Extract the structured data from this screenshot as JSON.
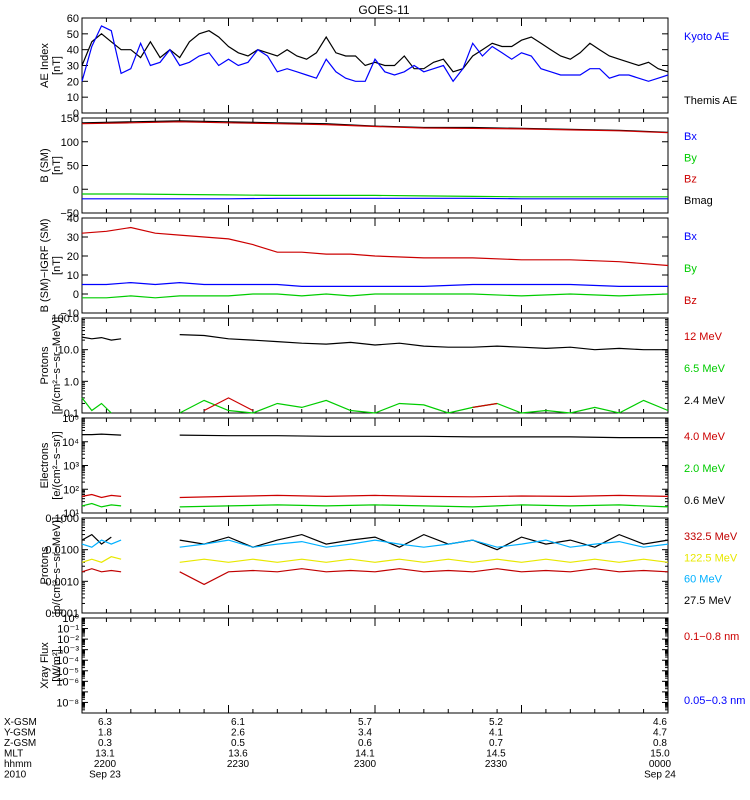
{
  "title": "GOES-11",
  "colors": {
    "black": "#000000",
    "blue": "#0000ff",
    "red": "#cc0000",
    "green": "#00cc00",
    "cyan": "#00b0ff",
    "yellow": "#e8e800",
    "darkred": "#c00000"
  },
  "panels": [
    {
      "id": "ae",
      "ylabel": "AE Index",
      "yunit": "[nT]",
      "scale": "linear",
      "ylim": [
        0,
        60
      ],
      "yticks": [
        0,
        10,
        20,
        30,
        40,
        50,
        60
      ],
      "yticklabels": [
        "0",
        "10",
        "20",
        "30",
        "40",
        "50",
        "60"
      ],
      "legend": [
        {
          "label": "Kyoto AE",
          "color": "#0000ff"
        },
        {
          "label": "Themis AE",
          "color": "#000000"
        }
      ]
    },
    {
      "id": "bfield",
      "ylabel": "B (SM)",
      "yunit": "[nT]",
      "scale": "linear",
      "ylim": [
        -50,
        150
      ],
      "yticks": [
        -50,
        0,
        50,
        100,
        150
      ],
      "yticklabels": [
        "−50",
        "0",
        "50",
        "100",
        "150"
      ],
      "legend": [
        {
          "label": "Bx",
          "color": "#0000ff"
        },
        {
          "label": "By",
          "color": "#00cc00"
        },
        {
          "label": "Bz",
          "color": "#cc0000"
        },
        {
          "label": "Bmag",
          "color": "#000000"
        }
      ]
    },
    {
      "id": "bdiff",
      "ylabel": "B (SM)−IGRF (SM)",
      "yunit": "[nT]",
      "scale": "linear",
      "ylim": [
        -10,
        40
      ],
      "yticks": [
        -10,
        0,
        10,
        20,
        30,
        40
      ],
      "yticklabels": [
        "−10",
        "0",
        "10",
        "20",
        "30",
        "40"
      ],
      "legend": [
        {
          "label": "Bx",
          "color": "#0000ff"
        },
        {
          "label": "By",
          "color": "#00cc00"
        },
        {
          "label": "Bz",
          "color": "#cc0000"
        }
      ]
    },
    {
      "id": "protons_low",
      "ylabel": "Protons",
      "yunit": "[p/(cm²−s−sr−MeV)]",
      "scale": "log",
      "ylim": [
        0.1,
        100
      ],
      "yticks": [
        0.1,
        1,
        10,
        100
      ],
      "yticklabels": [
        "0.1",
        "1.0",
        "10.0",
        "100.0"
      ],
      "legend": [
        {
          "label": "12 MeV",
          "color": "#cc0000"
        },
        {
          "label": "6.5 MeV",
          "color": "#00cc00"
        },
        {
          "label": "2.4 MeV",
          "color": "#000000"
        }
      ]
    },
    {
      "id": "electrons",
      "ylabel": "Electrons",
      "yunit": "[e/(cm²−s−sr)]",
      "scale": "log",
      "ylim": [
        10,
        100000
      ],
      "yticks": [
        10,
        100,
        1000,
        10000,
        100000
      ],
      "yticklabels": [
        "10¹",
        "10²",
        "10³",
        "10⁴",
        "10⁵"
      ],
      "legend": [
        {
          "label": "4.0 MeV",
          "color": "#cc0000"
        },
        {
          "label": "2.0 MeV",
          "color": "#00cc00"
        },
        {
          "label": "0.6 MeV",
          "color": "#000000"
        }
      ]
    },
    {
      "id": "protons_high",
      "ylabel": "Protons",
      "yunit": "[p/(cm²−s−sr−MeV)]",
      "scale": "log",
      "ylim": [
        0.0001,
        0.1
      ],
      "yticks": [
        0.0001,
        0.001,
        0.01,
        0.1
      ],
      "yticklabels": [
        "0.0001",
        "0.0010",
        "0.0100",
        "0.1000"
      ],
      "legend": [
        {
          "label": "332.5 MeV",
          "color": "#c00000"
        },
        {
          "label": "122.5 MeV",
          "color": "#e8e800"
        },
        {
          "label": "60 MeV",
          "color": "#00b0ff"
        },
        {
          "label": "27.5 MeV",
          "color": "#000000"
        }
      ]
    },
    {
      "id": "xray",
      "ylabel": "Xray Flux",
      "yunit": "[W/m²]",
      "scale": "log",
      "ylim": [
        1e-09,
        1
      ],
      "yticks": [
        1e-09,
        1e-08,
        1e-07,
        1e-06,
        1e-05,
        0.0001,
        0.001,
        0.01,
        0.1,
        1
      ],
      "yticklabels": [
        "",
        "10⁻⁸",
        "",
        "10⁻⁶",
        "10⁻⁵",
        "10⁻⁴",
        "10⁻³",
        "10⁻²",
        "10⁻¹",
        "10⁰"
      ],
      "legend": [
        {
          "label": "0.1−0.8 nm",
          "color": "#cc0000"
        },
        {
          "label": "0.05−0.3 nm",
          "color": "#0000ff"
        }
      ]
    }
  ],
  "xaxis": {
    "row_labels": [
      "X-GSM",
      "Y-GSM",
      "Z-GSM",
      "MLT",
      "hhmm",
      "2010"
    ],
    "columns": [
      {
        "values": [
          "6.3",
          "1.8",
          "0.3",
          "13.1",
          "2200",
          "Sep 23"
        ]
      },
      {
        "values": [
          "6.1",
          "2.6",
          "0.5",
          "13.6",
          "2230",
          ""
        ]
      },
      {
        "values": [
          "5.7",
          "3.4",
          "0.6",
          "14.1",
          "2300",
          ""
        ]
      },
      {
        "values": [
          "5.2",
          "4.1",
          "0.7",
          "14.5",
          "2330",
          ""
        ]
      },
      {
        "values": [
          "4.6",
          "4.7",
          "0.8",
          "15.0",
          "0000",
          "Sep 24"
        ]
      }
    ]
  },
  "chart_data": [
    {
      "type": "line",
      "panel": "ae",
      "x_minutes": [
        0,
        2,
        4,
        6,
        8,
        10,
        12,
        14,
        16,
        18,
        20,
        22,
        24,
        26,
        28,
        30,
        32,
        34,
        36,
        38,
        40,
        42,
        44,
        46,
        48,
        50,
        52,
        54,
        56,
        58,
        60,
        62,
        64,
        66,
        68,
        70,
        72,
        74,
        76,
        78,
        80,
        82,
        84,
        86,
        88,
        90,
        92,
        94,
        96,
        98,
        100,
        102,
        104,
        106,
        108,
        110,
        112,
        114,
        116,
        118,
        120
      ],
      "series": [
        {
          "name": "Themis AE",
          "color": "#000000",
          "values": [
            30,
            45,
            50,
            45,
            40,
            40,
            35,
            45,
            35,
            40,
            35,
            45,
            50,
            52,
            48,
            42,
            38,
            36,
            40,
            38,
            36,
            40,
            36,
            34,
            38,
            48,
            38,
            36,
            36,
            30,
            32,
            30,
            30,
            36,
            28,
            28,
            32,
            34,
            26,
            28,
            36,
            40,
            44,
            42,
            42,
            46,
            48,
            44,
            40,
            36,
            34,
            38,
            44,
            40,
            36,
            34,
            32,
            30,
            32,
            28,
            26
          ]
        },
        {
          "name": "Kyoto AE",
          "color": "#0000ff",
          "values": [
            20,
            42,
            55,
            52,
            25,
            28,
            44,
            30,
            32,
            40,
            30,
            32,
            36,
            38,
            30,
            34,
            30,
            32,
            40,
            36,
            26,
            28,
            26,
            24,
            22,
            34,
            26,
            22,
            20,
            20,
            34,
            26,
            24,
            26,
            30,
            26,
            28,
            30,
            20,
            28,
            44,
            36,
            42,
            38,
            34,
            38,
            36,
            28,
            26,
            24,
            24,
            24,
            28,
            28,
            22,
            24,
            24,
            22,
            20,
            22,
            24
          ]
        }
      ]
    },
    {
      "type": "line",
      "panel": "bfield",
      "x_minutes": [
        0,
        10,
        20,
        30,
        40,
        50,
        60,
        70,
        80,
        90,
        100,
        110,
        120
      ],
      "series": [
        {
          "name": "Bmag",
          "color": "#000000",
          "values": [
            140,
            142,
            144,
            142,
            140,
            138,
            133,
            130,
            130,
            128,
            126,
            124,
            120
          ]
        },
        {
          "name": "Bz",
          "color": "#cc0000",
          "values": [
            138,
            140,
            142,
            140,
            138,
            136,
            132,
            129,
            128,
            127,
            125,
            123,
            119
          ]
        },
        {
          "name": "By",
          "color": "#00cc00",
          "values": [
            -10,
            -10,
            -11,
            -12,
            -13,
            -13,
            -13,
            -14,
            -15,
            -16,
            -16,
            -16,
            -16
          ]
        },
        {
          "name": "Bx",
          "color": "#0000ff",
          "values": [
            -20,
            -20,
            -20,
            -20,
            -19,
            -19,
            -19,
            -19,
            -19,
            -20,
            -20,
            -20,
            -20
          ]
        }
      ]
    },
    {
      "type": "line",
      "panel": "bdiff",
      "x_minutes": [
        0,
        5,
        10,
        15,
        20,
        25,
        30,
        35,
        40,
        45,
        50,
        55,
        60,
        70,
        80,
        90,
        100,
        110,
        120
      ],
      "series": [
        {
          "name": "Bz",
          "color": "#cc0000",
          "values": [
            32,
            33,
            35,
            32,
            31,
            30,
            29,
            26,
            22,
            22,
            21,
            21,
            20,
            19,
            19,
            18,
            18,
            17,
            15
          ]
        },
        {
          "name": "Bx",
          "color": "#0000ff",
          "values": [
            5,
            5,
            6,
            5,
            6,
            5,
            5,
            5,
            5,
            4,
            4,
            4,
            4,
            4,
            5,
            5,
            5,
            4,
            4
          ]
        },
        {
          "name": "By",
          "color": "#00cc00",
          "values": [
            -2,
            -2,
            -1,
            -2,
            -1,
            -1,
            -1,
            0,
            0,
            -1,
            0,
            -1,
            0,
            0,
            0,
            -1,
            0,
            -1,
            0
          ]
        }
      ]
    },
    {
      "type": "line",
      "panel": "protons_low",
      "x_minutes": [
        0,
        2,
        4,
        6,
        8,
        10,
        20,
        25,
        30,
        35,
        40,
        45,
        50,
        55,
        60,
        65,
        70,
        75,
        80,
        85,
        90,
        95,
        100,
        105,
        110,
        115,
        120
      ],
      "series": [
        {
          "name": "2.4 MeV",
          "color": "#000000",
          "values": [
            25,
            22,
            24,
            20,
            22,
            null,
            30,
            28,
            22,
            20,
            18,
            16,
            15,
            17,
            14,
            16,
            13,
            12,
            12,
            13,
            12,
            11,
            12,
            10,
            11,
            10,
            10
          ]
        },
        {
          "name": "6.5 MeV",
          "color": "#00cc00",
          "values": [
            0.3,
            0.12,
            0.2,
            0.1,
            null,
            null,
            0.1,
            0.25,
            0.12,
            0.1,
            0.2,
            0.15,
            0.25,
            0.12,
            0.1,
            0.2,
            0.18,
            0.1,
            0.15,
            0.2,
            0.1,
            0.12,
            0.1,
            0.15,
            0.1,
            0.25,
            0.12
          ]
        },
        {
          "name": "12 MeV",
          "color": "#cc0000",
          "values": [
            null,
            null,
            null,
            null,
            null,
            null,
            null,
            0.12,
            0.3,
            0.12,
            null,
            null,
            null,
            null,
            0.2,
            null,
            null,
            null,
            0.15,
            0.2,
            null,
            null,
            null,
            null,
            null,
            null,
            null
          ]
        }
      ]
    },
    {
      "type": "line",
      "panel": "electrons",
      "x_minutes": [
        0,
        2,
        4,
        6,
        8,
        10,
        20,
        30,
        40,
        50,
        60,
        70,
        80,
        90,
        100,
        110,
        120
      ],
      "series": [
        {
          "name": "0.6 MeV",
          "color": "#000000",
          "values": [
            20000,
            20000,
            21000,
            20000,
            19000,
            null,
            19000,
            18000,
            18000,
            17000,
            17000,
            17000,
            16000,
            16000,
            16000,
            15000,
            15000
          ]
        },
        {
          "name": "4.0 MeV",
          "color": "#cc0000",
          "values": [
            50,
            60,
            45,
            55,
            50,
            null,
            45,
            50,
            55,
            50,
            55,
            50,
            48,
            52,
            50,
            55,
            50
          ]
        },
        {
          "name": "2.0 MeV",
          "color": "#00cc00",
          "values": [
            20,
            25,
            18,
            22,
            20,
            null,
            18,
            20,
            22,
            20,
            22,
            20,
            18,
            22,
            20,
            22,
            18
          ]
        }
      ]
    },
    {
      "type": "line",
      "panel": "protons_high",
      "x_minutes": [
        0,
        2,
        4,
        6,
        8,
        10,
        20,
        25,
        30,
        35,
        40,
        45,
        50,
        55,
        60,
        65,
        70,
        75,
        80,
        85,
        90,
        95,
        100,
        105,
        110,
        115,
        120
      ],
      "series": [
        {
          "name": "27.5 MeV",
          "color": "#000000",
          "values": [
            0.02,
            0.03,
            0.015,
            0.025,
            null,
            null,
            0.02,
            0.015,
            0.025,
            0.012,
            0.02,
            0.03,
            0.015,
            0.02,
            0.025,
            0.012,
            0.03,
            0.015,
            0.02,
            0.01,
            0.025,
            0.015,
            0.02,
            0.012,
            0.03,
            0.015,
            0.02
          ]
        },
        {
          "name": "60 MeV",
          "color": "#00b0ff",
          "values": [
            0.015,
            0.012,
            0.02,
            0.015,
            0.02,
            null,
            0.012,
            0.015,
            0.02,
            0.012,
            0.015,
            0.018,
            0.012,
            0.015,
            0.02,
            0.015,
            0.012,
            0.015,
            0.02,
            0.012,
            0.015,
            0.02,
            0.012,
            0.015,
            0.018,
            0.012,
            0.015
          ]
        },
        {
          "name": "122.5 MeV",
          "color": "#e8e800",
          "values": [
            0.004,
            0.005,
            0.004,
            0.006,
            0.005,
            null,
            0.004,
            0.005,
            0.004,
            0.005,
            0.004,
            0.005,
            0.004,
            0.005,
            0.004,
            0.005,
            0.004,
            0.005,
            0.004,
            0.005,
            0.004,
            0.005,
            0.004,
            0.005,
            0.004,
            0.005,
            0.004
          ]
        },
        {
          "name": "332.5 MeV",
          "color": "#c00000",
          "values": [
            0.002,
            0.0025,
            0.002,
            0.0022,
            0.002,
            null,
            0.002,
            0.0008,
            0.002,
            0.0022,
            0.002,
            0.0025,
            0.002,
            0.0022,
            0.002,
            0.0025,
            0.002,
            0.0022,
            0.002,
            0.0025,
            0.002,
            0.0022,
            0.002,
            0.0025,
            0.002,
            0.0022,
            0.002
          ]
        }
      ]
    }
  ]
}
